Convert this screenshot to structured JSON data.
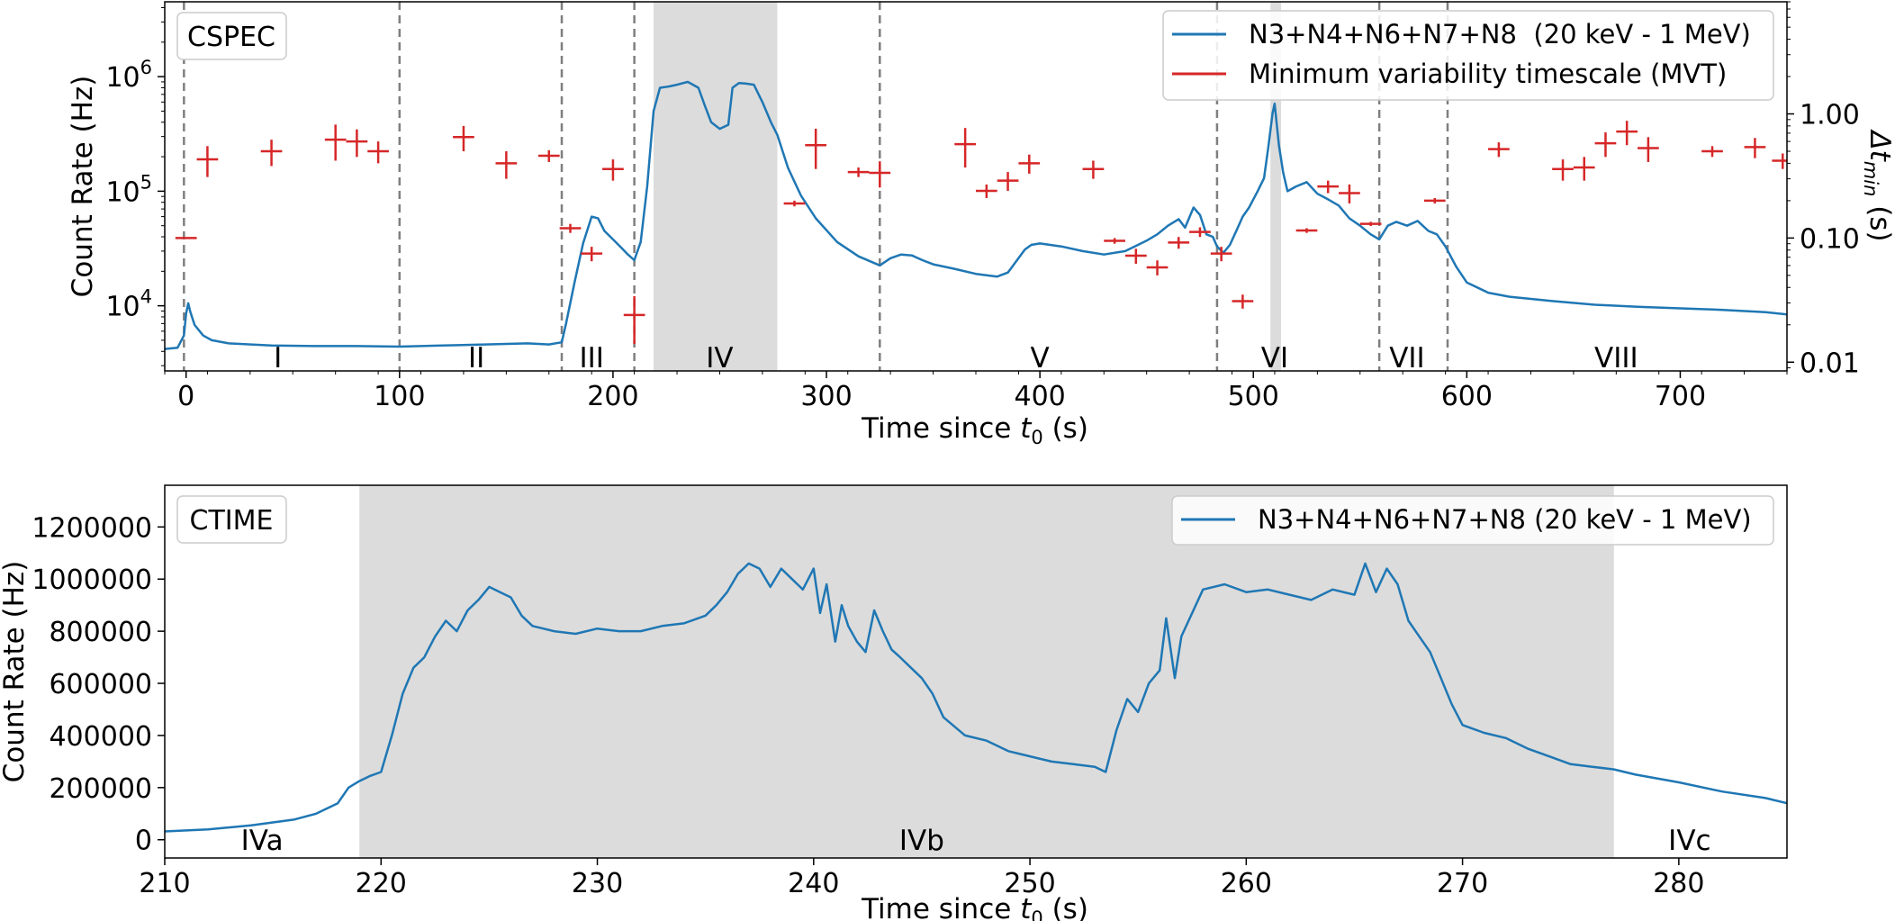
{
  "chart_data": [
    {
      "type": "line",
      "box_label": "CSPEC",
      "xlabel": "Time since t0 (s)",
      "xlabel_base": "Time since ",
      "xlabel_var": "t",
      "xlabel_sub": "0",
      "xlabel_tail": " (s)",
      "ylabel": "Count Rate (Hz)",
      "ylabel_right_base": "Δt",
      "ylabel_right_sub": "min",
      "ylabel_right_tail": " (s)",
      "xlim": [
        -10,
        750
      ],
      "ylim": [
        2700,
        4500000
      ],
      "y_scale": "log",
      "ylim_right": [
        0.0085,
        8
      ],
      "xticks": [
        0,
        100,
        200,
        300,
        400,
        500,
        600,
        700
      ],
      "yticks": [
        {
          "value": 10000,
          "base": "10",
          "exp": "4"
        },
        {
          "value": 100000,
          "base": "10",
          "exp": "5"
        },
        {
          "value": 1000000,
          "base": "10",
          "exp": "6"
        }
      ],
      "yticks_right": [
        {
          "value": 0.01,
          "label": "0.01"
        },
        {
          "value": 0.1,
          "label": "0.10"
        },
        {
          "value": 1.0,
          "label": "1.00"
        }
      ],
      "colors": {
        "line": "#1f77b4",
        "mvt": "#d62728",
        "shade": "#dcdcdc",
        "divider": "#7f7f7f"
      },
      "legend": {
        "placement": "top-right",
        "entries": [
          "N3+N4+N6+N7+N8  (20 keV - 1 MeV)",
          "Minimum variability timescale (MVT)"
        ]
      },
      "shaded_regions": [
        [
          219,
          277
        ],
        [
          508,
          513
        ]
      ],
      "dividers": [
        -1,
        100,
        176,
        210,
        325,
        483,
        559,
        591
      ],
      "phases": [
        {
          "label": "I",
          "x": 43
        },
        {
          "label": "II",
          "x": 136
        },
        {
          "label": "III",
          "x": 190
        },
        {
          "label": "IV",
          "x": 250
        },
        {
          "label": "V",
          "x": 400
        },
        {
          "label": "VI",
          "x": 510
        },
        {
          "label": "VII",
          "x": 572
        },
        {
          "label": "VIII",
          "x": 670
        }
      ],
      "series": [
        {
          "name": "N3+N4+N6+N7+N8  (20 keV - 1 MeV)",
          "x": [
            -10,
            -4,
            -1,
            0,
            1,
            2,
            4,
            8,
            12,
            20,
            40,
            60,
            80,
            100,
            120,
            140,
            160,
            170,
            176,
            178,
            182,
            186,
            190,
            193,
            196,
            200,
            204,
            207,
            210,
            213,
            216,
            219,
            222,
            226,
            230,
            235,
            240,
            243,
            246,
            250,
            254,
            256,
            259,
            262,
            266,
            270,
            274,
            277,
            282,
            288,
            295,
            305,
            315,
            325,
            330,
            335,
            340,
            345,
            350,
            360,
            370,
            380,
            385,
            390,
            393,
            396,
            400,
            410,
            420,
            430,
            440,
            450,
            455,
            460,
            465,
            468,
            472,
            475,
            478,
            481,
            483,
            486,
            489,
            492,
            495,
            498,
            502,
            505,
            507,
            509,
            510,
            511,
            512,
            514,
            516,
            520,
            525,
            530,
            535,
            540,
            545,
            550,
            555,
            559,
            563,
            567,
            572,
            577,
            582,
            586,
            590,
            595,
            600,
            610,
            620,
            640,
            660,
            680,
            700,
            720,
            740,
            750
          ],
          "values": [
            4200,
            4300,
            5500,
            8500,
            10500,
            8800,
            6800,
            5500,
            5000,
            4700,
            4500,
            4450,
            4450,
            4400,
            4500,
            4600,
            4700,
            4600,
            4800,
            7000,
            16000,
            35000,
            60000,
            58000,
            45000,
            38000,
            32000,
            28000,
            25000,
            36000,
            110000,
            500000,
            800000,
            820000,
            850000,
            900000,
            800000,
            560000,
            400000,
            350000,
            380000,
            800000,
            880000,
            870000,
            850000,
            600000,
            400000,
            310000,
            160000,
            92000,
            58000,
            36000,
            27000,
            22500,
            26000,
            28000,
            27500,
            25000,
            23000,
            21000,
            19000,
            18000,
            19500,
            26000,
            31000,
            34000,
            35000,
            33000,
            30000,
            28000,
            30000,
            37000,
            42000,
            50000,
            57000,
            48000,
            72000,
            62000,
            42000,
            40000,
            33000,
            29000,
            34000,
            45000,
            60000,
            72000,
            100000,
            130000,
            240000,
            480000,
            580000,
            380000,
            250000,
            145000,
            100000,
            110000,
            120000,
            95000,
            85000,
            75000,
            58000,
            50000,
            42000,
            38000,
            50000,
            54000,
            50000,
            55000,
            45000,
            42000,
            33000,
            22000,
            16000,
            13000,
            12000,
            11000,
            10200,
            9800,
            9500,
            9200,
            8800,
            8400
          ]
        },
        {
          "name": "Minimum variability timescale (MVT)",
          "axis": "right",
          "points": [
            {
              "x": 0,
              "y": 0.1,
              "xerr": 5,
              "yerr": 0
            },
            {
              "x": 10,
              "y": 0.43,
              "xerr": 5,
              "yerr": 0.12
            },
            {
              "x": 40,
              "y": 0.5,
              "xerr": 5,
              "yerr": 0.12
            },
            {
              "x": 70,
              "y": 0.62,
              "xerr": 5,
              "yerr": 0.2
            },
            {
              "x": 80,
              "y": 0.6,
              "xerr": 5,
              "yerr": 0.15
            },
            {
              "x": 90,
              "y": 0.5,
              "xerr": 5,
              "yerr": 0.1
            },
            {
              "x": 130,
              "y": 0.65,
              "xerr": 5,
              "yerr": 0.15
            },
            {
              "x": 150,
              "y": 0.4,
              "xerr": 5,
              "yerr": 0.1
            },
            {
              "x": 170,
              "y": 0.46,
              "xerr": 5,
              "yerr": 0.05
            },
            {
              "x": 180,
              "y": 0.12,
              "xerr": 5,
              "yerr": 0.01
            },
            {
              "x": 190,
              "y": 0.075,
              "xerr": 5,
              "yerr": 0.01
            },
            {
              "x": 200,
              "y": 0.36,
              "xerr": 5,
              "yerr": 0.07
            },
            {
              "x": 210,
              "y": 0.024,
              "xerr": 5,
              "yerr": 0.01
            },
            {
              "x": 285,
              "y": 0.19,
              "xerr": 5,
              "yerr": 0.01
            },
            {
              "x": 295,
              "y": 0.56,
              "xerr": 5,
              "yerr": 0.2
            },
            {
              "x": 315,
              "y": 0.34,
              "xerr": 5,
              "yerr": 0.03
            },
            {
              "x": 325,
              "y": 0.335,
              "xerr": 5,
              "yerr": 0.08
            },
            {
              "x": 365,
              "y": 0.57,
              "xerr": 5,
              "yerr": 0.2
            },
            {
              "x": 375,
              "y": 0.24,
              "xerr": 5,
              "yerr": 0.03
            },
            {
              "x": 385,
              "y": 0.29,
              "xerr": 5,
              "yerr": 0.05
            },
            {
              "x": 395,
              "y": 0.4,
              "xerr": 5,
              "yerr": 0.07
            },
            {
              "x": 425,
              "y": 0.36,
              "xerr": 5,
              "yerr": 0.06
            },
            {
              "x": 435,
              "y": 0.095,
              "xerr": 5,
              "yerr": 0.005
            },
            {
              "x": 445,
              "y": 0.072,
              "xerr": 5,
              "yerr": 0.01
            },
            {
              "x": 455,
              "y": 0.058,
              "xerr": 5,
              "yerr": 0.008
            },
            {
              "x": 465,
              "y": 0.092,
              "xerr": 5,
              "yerr": 0.01
            },
            {
              "x": 475,
              "y": 0.112,
              "xerr": 5,
              "yerr": 0.01
            },
            {
              "x": 485,
              "y": 0.075,
              "xerr": 5,
              "yerr": 0.01
            },
            {
              "x": 495,
              "y": 0.031,
              "xerr": 5,
              "yerr": 0.004
            },
            {
              "x": 525,
              "y": 0.115,
              "xerr": 5,
              "yerr": 0.005
            },
            {
              "x": 535,
              "y": 0.26,
              "xerr": 5,
              "yerr": 0.03
            },
            {
              "x": 545,
              "y": 0.23,
              "xerr": 5,
              "yerr": 0.04
            },
            {
              "x": 555,
              "y": 0.13,
              "xerr": 5,
              "yerr": 0.005
            },
            {
              "x": 585,
              "y": 0.2,
              "xerr": 5,
              "yerr": 0.01
            },
            {
              "x": 615,
              "y": 0.52,
              "xerr": 5,
              "yerr": 0.07
            },
            {
              "x": 645,
              "y": 0.36,
              "xerr": 5,
              "yerr": 0.07
            },
            {
              "x": 655,
              "y": 0.37,
              "xerr": 5,
              "yerr": 0.08
            },
            {
              "x": 665,
              "y": 0.58,
              "xerr": 5,
              "yerr": 0.13
            },
            {
              "x": 675,
              "y": 0.72,
              "xerr": 5,
              "yerr": 0.16
            },
            {
              "x": 685,
              "y": 0.53,
              "xerr": 5,
              "yerr": 0.12
            },
            {
              "x": 715,
              "y": 0.5,
              "xerr": 5,
              "yerr": 0.05
            },
            {
              "x": 735,
              "y": 0.54,
              "xerr": 5,
              "yerr": 0.1
            },
            {
              "x": 748,
              "y": 0.42,
              "xerr": 5,
              "yerr": 0.06
            }
          ]
        }
      ]
    },
    {
      "type": "line",
      "box_label": "CTIME",
      "xlabel": "Time since t0 (s)",
      "xlabel_base": "Time since ",
      "xlabel_var": "t",
      "xlabel_sub": "0",
      "xlabel_tail": " (s)",
      "ylabel": "Count Rate (Hz)",
      "xlim": [
        210,
        285
      ],
      "ylim": [
        -70000,
        1360000
      ],
      "y_scale": "linear",
      "xticks": [
        210,
        220,
        230,
        240,
        250,
        260,
        270,
        280
      ],
      "yticks": [
        {
          "value": 0,
          "label": "0"
        },
        {
          "value": 200000,
          "label": "200000"
        },
        {
          "value": 400000,
          "label": "400000"
        },
        {
          "value": 600000,
          "label": "600000"
        },
        {
          "value": 800000,
          "label": "800000"
        },
        {
          "value": 1000000,
          "label": "1000000"
        },
        {
          "value": 1200000,
          "label": "1200000"
        }
      ],
      "colors": {
        "line": "#1f77b4",
        "shade": "#dcdcdc"
      },
      "legend": {
        "placement": "top-right",
        "entries": [
          "N3+N4+N6+N7+N8 (20 keV - 1 MeV)"
        ]
      },
      "shaded_regions": [
        [
          219,
          277
        ]
      ],
      "phases": [
        {
          "label": "IVa",
          "x": 214.5
        },
        {
          "label": "IVb",
          "x": 245
        },
        {
          "label": "IVc",
          "x": 280.5
        }
      ],
      "series": [
        {
          "name": "N3+N4+N6+N7+N8 (20 keV - 1 MeV)",
          "x": [
            210,
            212,
            214,
            216,
            217,
            218,
            218.5,
            219,
            219.5,
            220,
            220.5,
            221,
            221.5,
            222,
            222.5,
            223,
            223.5,
            224,
            224.5,
            225,
            225.5,
            226,
            226.5,
            227,
            227.5,
            228,
            229,
            230,
            231,
            232,
            233,
            234,
            235,
            235.5,
            236,
            236.5,
            237,
            237.5,
            238,
            238.5,
            239,
            239.5,
            240,
            240.3,
            240.6,
            241,
            241.3,
            241.6,
            242,
            242.4,
            242.8,
            243.2,
            243.6,
            244,
            244.5,
            245,
            245.5,
            246,
            247,
            248,
            249,
            250,
            251,
            252,
            253,
            253.5,
            254,
            254.5,
            255,
            255.5,
            256,
            256.3,
            256.7,
            257,
            258,
            259,
            260,
            261,
            262,
            263,
            264,
            265,
            265.5,
            266,
            266.5,
            267,
            267.5,
            268,
            268.5,
            269,
            269.5,
            270,
            271,
            272,
            273,
            274,
            275,
            276,
            277,
            278,
            280,
            282,
            284,
            285
          ],
          "values": [
            32000,
            40000,
            55000,
            78000,
            100000,
            140000,
            200000,
            225000,
            245000,
            260000,
            400000,
            560000,
            660000,
            700000,
            780000,
            840000,
            800000,
            880000,
            920000,
            970000,
            950000,
            930000,
            860000,
            820000,
            810000,
            800000,
            790000,
            810000,
            800000,
            800000,
            820000,
            830000,
            860000,
            900000,
            950000,
            1020000,
            1060000,
            1040000,
            970000,
            1040000,
            1000000,
            960000,
            1040000,
            870000,
            980000,
            760000,
            900000,
            820000,
            760000,
            720000,
            880000,
            800000,
            730000,
            700000,
            660000,
            620000,
            560000,
            470000,
            400000,
            380000,
            340000,
            320000,
            300000,
            290000,
            280000,
            260000,
            420000,
            540000,
            490000,
            600000,
            650000,
            850000,
            620000,
            780000,
            960000,
            980000,
            950000,
            960000,
            940000,
            920000,
            960000,
            940000,
            1060000,
            950000,
            1040000,
            980000,
            840000,
            780000,
            720000,
            620000,
            520000,
            440000,
            410000,
            390000,
            350000,
            320000,
            290000,
            280000,
            270000,
            250000,
            220000,
            185000,
            160000,
            140000
          ]
        }
      ]
    }
  ]
}
